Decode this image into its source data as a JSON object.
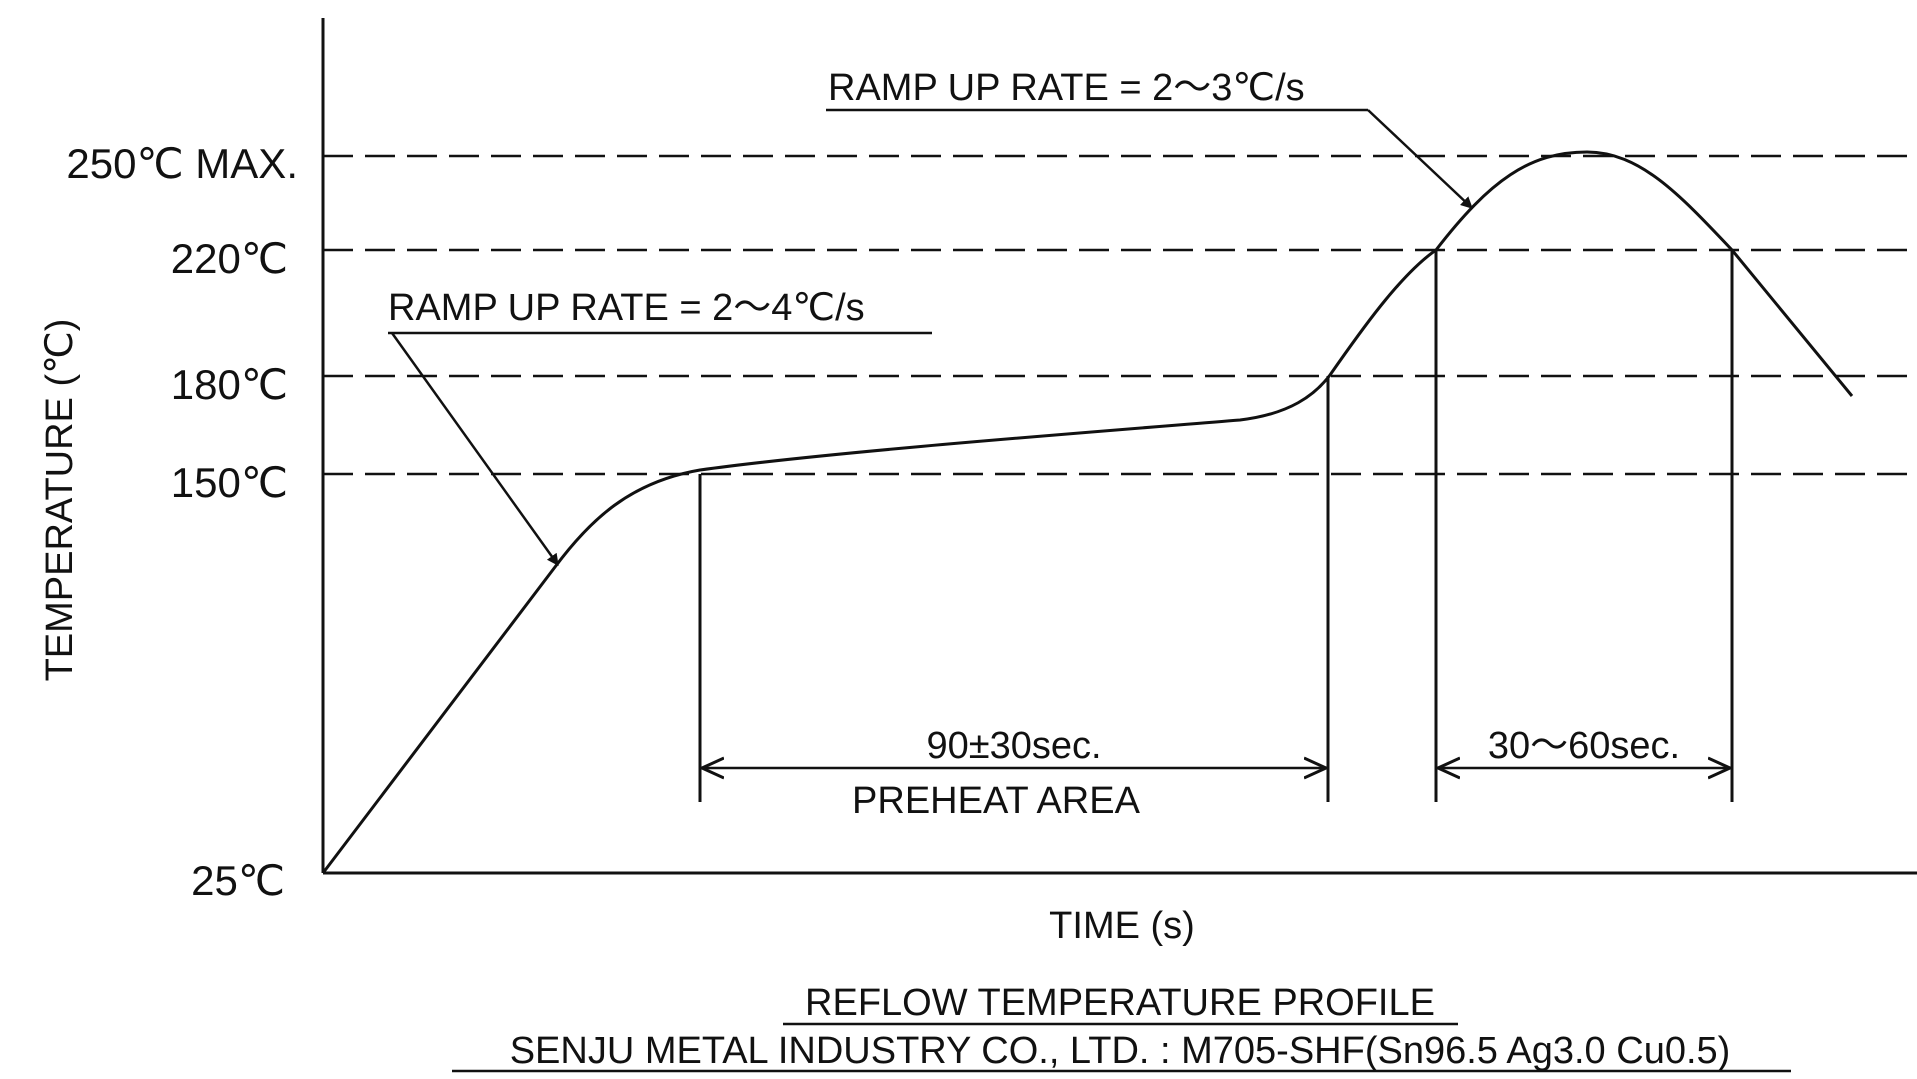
{
  "diagram": {
    "title": "REFLOW TEMPERATURE PROFILE",
    "subtitle": "SENJU METAL INDUSTRY CO., LTD. : M705-SHF(Sn96.5 Ag3.0 Cu0.5)",
    "x_axis_label": "TIME (s)",
    "y_axis_label": "TEMPERATURE (℃)",
    "y_levels": [
      {
        "label": "250℃ MAX.",
        "value": 250
      },
      {
        "label": "220℃",
        "value": 220
      },
      {
        "label": "180℃",
        "value": 180
      },
      {
        "label": "150℃",
        "value": 150
      },
      {
        "label": "25℃",
        "value": 25
      }
    ],
    "annotations": {
      "ramp_up_1": "RAMP UP RATE = 2～4℃/s",
      "ramp_up_2": "RAMP UP RATE = 2～3℃/s",
      "preheat_time": "90±30sec.",
      "preheat_area": "PREHEAT AREA",
      "reflow_time": "30～60sec."
    },
    "colors": {
      "line": "#111111",
      "background": "#ffffff"
    }
  }
}
